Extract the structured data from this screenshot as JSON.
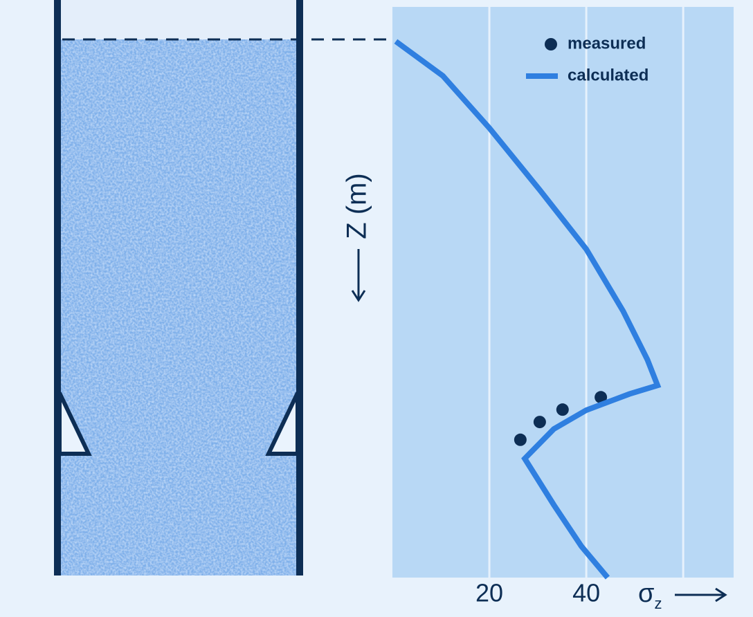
{
  "chart_data": {
    "type": "line",
    "x_label": {
      "symbol": "σ",
      "subscript": "z"
    },
    "y_label": "Z (m)",
    "xlim": [
      0,
      70.4
    ],
    "ylim": [
      -6,
      100
    ],
    "y_inverted": true,
    "xticks": [
      20,
      40
    ],
    "xgrid": [
      20,
      40,
      60
    ],
    "grid": true,
    "legend": "top-right",
    "series": [
      {
        "name": "measured",
        "style": "marker",
        "color": "#0d2e55",
        "x": [
          26.4,
          30.4,
          35.1,
          43.0
        ],
        "y": [
          74.4,
          71.1,
          68.8,
          66.5
        ]
      },
      {
        "name": "calculated",
        "style": "line",
        "color": "#2f7fe0",
        "x": [
          0.7,
          10.4,
          20,
          30.4,
          40,
          47.6,
          52.6,
          54.7,
          48.9,
          40,
          33.3,
          27.3,
          33.3,
          39,
          44.4
        ],
        "y": [
          0.4,
          6.8,
          16.5,
          28,
          39,
          50.5,
          59.5,
          64.3,
          65.9,
          68.9,
          72.4,
          77.9,
          86.5,
          94.2,
          100
        ]
      }
    ]
  }
}
